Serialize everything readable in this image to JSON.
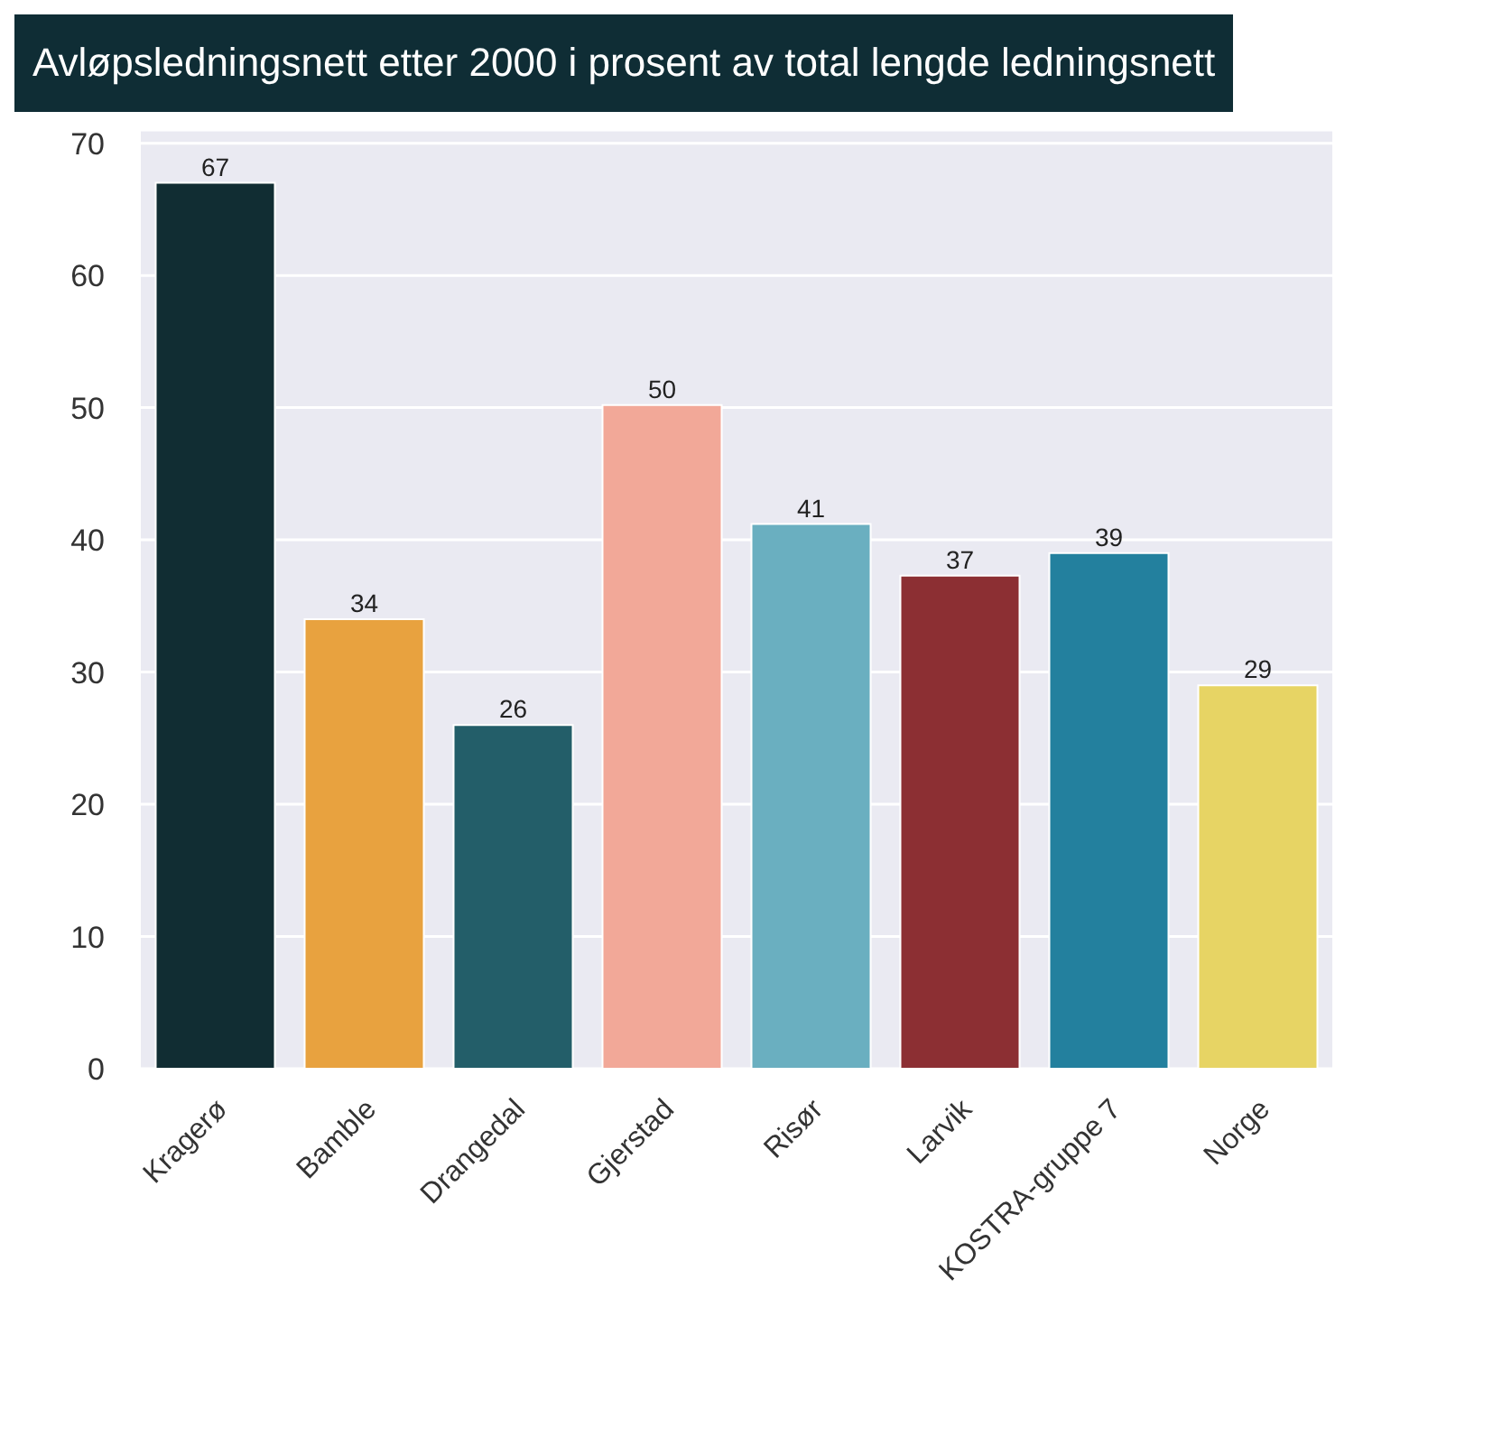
{
  "chart_data": {
    "type": "bar",
    "title": "Avløpsledningsnett etter 2000 i prosent av total lengde ledningsnett",
    "categories": [
      "Kragerø",
      "Bamble",
      "Drangedal",
      "Gjerstad",
      "Risør",
      "Larvik",
      "KOSTRA-gruppe 7",
      "Norge"
    ],
    "values": [
      67,
      34,
      26,
      50.2,
      41.2,
      37.3,
      39,
      29
    ],
    "value_labels": [
      "67",
      "34",
      "26",
      "50",
      "41",
      "37",
      "39",
      "29"
    ],
    "colors": [
      "#112d33",
      "#e8a23f",
      "#235e69",
      "#f2a898",
      "#6aafc0",
      "#8c2f33",
      "#23809e",
      "#e7d464"
    ],
    "ylim": [
      0,
      71
    ],
    "yticks": [
      0,
      10,
      20,
      30,
      40,
      50,
      60,
      70
    ],
    "grid": "y"
  }
}
